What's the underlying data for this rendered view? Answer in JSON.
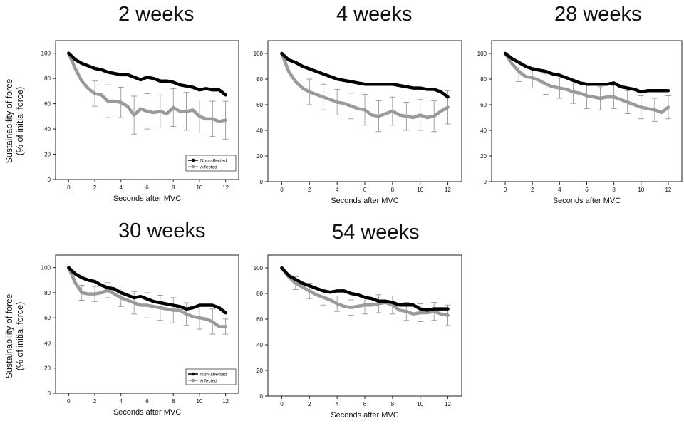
{
  "shared": {
    "ylabel_line1": "Sustainability of force",
    "ylabel_line2": "(% of initial force)",
    "xlabel": "Seconds after MVC",
    "x_ticks": [
      0,
      2,
      4,
      6,
      8,
      10,
      12
    ],
    "y_ticks": [
      0,
      20,
      40,
      60,
      80,
      100
    ],
    "colors": {
      "non_affected": "#000000",
      "affected": "#9a9a9a",
      "error_bar": "#8a8a8a"
    }
  },
  "chart_data": [
    {
      "type": "line",
      "title": "2 weeks",
      "xlabel": "Seconds after MVC",
      "ylabel": "Sustainability of force (% of initial force)",
      "xlim": [
        -1,
        13
      ],
      "ylim": [
        0,
        110
      ],
      "legend": {
        "position": "bottom-right",
        "entries": [
          "Non-affected",
          "Affected"
        ]
      },
      "series": [
        {
          "name": "Non-affected",
          "x": [
            0,
            0.5,
            1,
            1.5,
            2,
            2.5,
            3,
            3.5,
            4,
            4.5,
            5,
            5.5,
            6,
            6.5,
            7,
            7.5,
            8,
            8.5,
            9,
            9.5,
            10,
            10.5,
            11,
            11.5,
            12
          ],
          "values": [
            100,
            95,
            92,
            90,
            88,
            87,
            85,
            84,
            83,
            83,
            81,
            79,
            81,
            80,
            78,
            78,
            77,
            75,
            74,
            73,
            71,
            72,
            71,
            71,
            67
          ],
          "errors": []
        },
        {
          "name": "Affected",
          "x": [
            0,
            0.5,
            1,
            1.5,
            2,
            2.5,
            3,
            3.5,
            4,
            4.5,
            5,
            5.5,
            6,
            6.5,
            7,
            7.5,
            8,
            8.5,
            9,
            9.5,
            10,
            10.5,
            11,
            11.5,
            12
          ],
          "values": [
            100,
            88,
            78,
            72,
            68,
            67,
            62,
            62,
            61,
            58,
            51,
            56,
            54,
            53,
            54,
            52,
            57,
            54,
            54,
            55,
            50,
            48,
            48,
            46,
            47
          ],
          "errors": [
            [
              2,
              10
            ],
            [
              3,
              13
            ],
            [
              4,
              12
            ],
            [
              5,
              15
            ],
            [
              6,
              14
            ],
            [
              7,
              13
            ],
            [
              8,
              15
            ],
            [
              9,
              15
            ],
            [
              10,
              13
            ],
            [
              11,
              14
            ],
            [
              12,
              15
            ]
          ]
        }
      ]
    },
    {
      "type": "line",
      "title": "4 weeks",
      "xlabel": "Seconds after MVC",
      "ylabel": "",
      "xlim": [
        -1,
        13
      ],
      "ylim": [
        0,
        110
      ],
      "legend": null,
      "series": [
        {
          "name": "Non-affected",
          "x": [
            0,
            0.5,
            1,
            1.5,
            2,
            2.5,
            3,
            3.5,
            4,
            4.5,
            5,
            5.5,
            6,
            6.5,
            7,
            7.5,
            8,
            8.5,
            9,
            9.5,
            10,
            10.5,
            11,
            11.5,
            12
          ],
          "values": [
            100,
            95,
            93,
            90,
            88,
            86,
            84,
            82,
            80,
            79,
            78,
            77,
            76,
            76,
            76,
            76,
            76,
            75,
            74,
            73,
            73,
            72,
            72,
            70,
            66
          ],
          "errors": []
        },
        {
          "name": "Affected",
          "x": [
            0,
            0.5,
            1,
            1.5,
            2,
            2.5,
            3,
            3.5,
            4,
            4.5,
            5,
            5.5,
            6,
            6.5,
            7,
            7.5,
            8,
            8.5,
            9,
            9.5,
            10,
            10.5,
            11,
            11.5,
            12
          ],
          "values": [
            100,
            86,
            78,
            73,
            70,
            68,
            66,
            64,
            62,
            61,
            59,
            57,
            56,
            52,
            51,
            53,
            55,
            52,
            51,
            50,
            52,
            50,
            51,
            55,
            58
          ],
          "errors": [
            [
              2,
              10
            ],
            [
              3,
              10
            ],
            [
              4,
              10
            ],
            [
              5,
              10
            ],
            [
              6,
              12
            ],
            [
              7,
              12
            ],
            [
              8,
              11
            ],
            [
              9,
              11
            ],
            [
              10,
              12
            ],
            [
              11,
              12
            ],
            [
              12,
              13
            ]
          ]
        }
      ]
    },
    {
      "type": "line",
      "title": "28 weeks",
      "xlabel": "Seconds after MVC",
      "ylabel": "",
      "xlim": [
        -1,
        13
      ],
      "ylim": [
        0,
        110
      ],
      "legend": null,
      "series": [
        {
          "name": "Non-affected",
          "x": [
            0,
            0.5,
            1,
            1.5,
            2,
            2.5,
            3,
            3.5,
            4,
            4.5,
            5,
            5.5,
            6,
            6.5,
            7,
            7.5,
            8,
            8.5,
            9,
            9.5,
            10,
            10.5,
            11,
            11.5,
            12
          ],
          "values": [
            100,
            96,
            93,
            90,
            88,
            87,
            86,
            84,
            83,
            81,
            79,
            77,
            76,
            76,
            76,
            76,
            77,
            74,
            73,
            72,
            70,
            71,
            71,
            71,
            71
          ],
          "errors": []
        },
        {
          "name": "Affected",
          "x": [
            0,
            0.5,
            1,
            1.5,
            2,
            2.5,
            3,
            3.5,
            4,
            4.5,
            5,
            5.5,
            6,
            6.5,
            7,
            7.5,
            8,
            8.5,
            9,
            9.5,
            10,
            10.5,
            11,
            11.5,
            12
          ],
          "values": [
            100,
            92,
            86,
            82,
            81,
            79,
            76,
            74,
            73,
            72,
            70,
            69,
            67,
            66,
            65,
            66,
            66,
            64,
            62,
            60,
            58,
            57,
            56,
            54,
            58
          ],
          "errors": [
            [
              1,
              8
            ],
            [
              2,
              8
            ],
            [
              3,
              8
            ],
            [
              4,
              8
            ],
            [
              5,
              9
            ],
            [
              6,
              10
            ],
            [
              7,
              9
            ],
            [
              8,
              9
            ],
            [
              9,
              9
            ],
            [
              10,
              9
            ],
            [
              11,
              9
            ],
            [
              12,
              9
            ]
          ]
        }
      ]
    },
    {
      "type": "line",
      "title": "30 weeks",
      "xlabel": "Seconds after MVC",
      "ylabel": "Sustainability of force (% of initial force)",
      "xlim": [
        -1,
        13
      ],
      "ylim": [
        0,
        110
      ],
      "legend": {
        "position": "bottom-right",
        "entries": [
          "Non-affected",
          "Affected"
        ]
      },
      "series": [
        {
          "name": "Non-affected",
          "x": [
            0,
            0.5,
            1,
            1.5,
            2,
            2.5,
            3,
            3.5,
            4,
            4.5,
            5,
            5.5,
            6,
            6.5,
            7,
            7.5,
            8,
            8.5,
            9,
            9.5,
            10,
            10.5,
            11,
            11.5,
            12
          ],
          "values": [
            100,
            95,
            92,
            90,
            89,
            86,
            84,
            83,
            80,
            78,
            76,
            77,
            75,
            73,
            72,
            71,
            70,
            69,
            67,
            68,
            70,
            70,
            70,
            68,
            64
          ],
          "errors": []
        },
        {
          "name": "Affected",
          "x": [
            0,
            0.5,
            1,
            1.5,
            2,
            2.5,
            3,
            3.5,
            4,
            4.5,
            5,
            5.5,
            6,
            6.5,
            7,
            7.5,
            8,
            8.5,
            9,
            9.5,
            10,
            10.5,
            11,
            11.5,
            12
          ],
          "values": [
            100,
            88,
            80,
            79,
            79,
            80,
            82,
            79,
            76,
            74,
            72,
            70,
            70,
            69,
            68,
            67,
            66,
            66,
            63,
            61,
            60,
            59,
            57,
            53,
            53
          ],
          "errors": [
            [
              1,
              6
            ],
            [
              2,
              6
            ],
            [
              3,
              6
            ],
            [
              4,
              7
            ],
            [
              5,
              9
            ],
            [
              6,
              10
            ],
            [
              7,
              10
            ],
            [
              8,
              10
            ],
            [
              9,
              9
            ],
            [
              10,
              9
            ],
            [
              11,
              10
            ],
            [
              12,
              6
            ]
          ]
        }
      ]
    },
    {
      "type": "line",
      "title": "54 weeks",
      "xlabel": "Seconds after MVC",
      "ylabel": "",
      "xlim": [
        -1,
        13
      ],
      "ylim": [
        0,
        110
      ],
      "legend": null,
      "series": [
        {
          "name": "Non-affected",
          "x": [
            0,
            0.5,
            1,
            1.5,
            2,
            2.5,
            3,
            3.5,
            4,
            4.5,
            5,
            5.5,
            6,
            6.5,
            7,
            7.5,
            8,
            8.5,
            9,
            9.5,
            10,
            10.5,
            11,
            11.5,
            12
          ],
          "values": [
            100,
            94,
            91,
            88,
            86,
            84,
            82,
            81,
            82,
            82,
            80,
            79,
            77,
            76,
            74,
            74,
            73,
            71,
            71,
            71,
            68,
            67,
            68,
            68,
            68
          ],
          "errors": []
        },
        {
          "name": "Affected",
          "x": [
            0,
            0.5,
            1,
            1.5,
            2,
            2.5,
            3,
            3.5,
            4,
            4.5,
            5,
            5.5,
            6,
            6.5,
            7,
            7.5,
            8,
            8.5,
            9,
            9.5,
            10,
            10.5,
            11,
            11.5,
            12
          ],
          "values": [
            100,
            93,
            88,
            85,
            82,
            79,
            77,
            75,
            72,
            70,
            69,
            70,
            71,
            71,
            72,
            73,
            71,
            67,
            66,
            64,
            65,
            65,
            66,
            64,
            63
          ],
          "errors": [
            [
              1,
              5
            ],
            [
              2,
              6
            ],
            [
              3,
              6
            ],
            [
              4,
              6
            ],
            [
              5,
              6
            ],
            [
              6,
              7
            ],
            [
              7,
              7
            ],
            [
              8,
              7
            ],
            [
              9,
              7
            ],
            [
              10,
              7
            ],
            [
              11,
              7
            ],
            [
              12,
              8
            ]
          ]
        }
      ]
    }
  ]
}
